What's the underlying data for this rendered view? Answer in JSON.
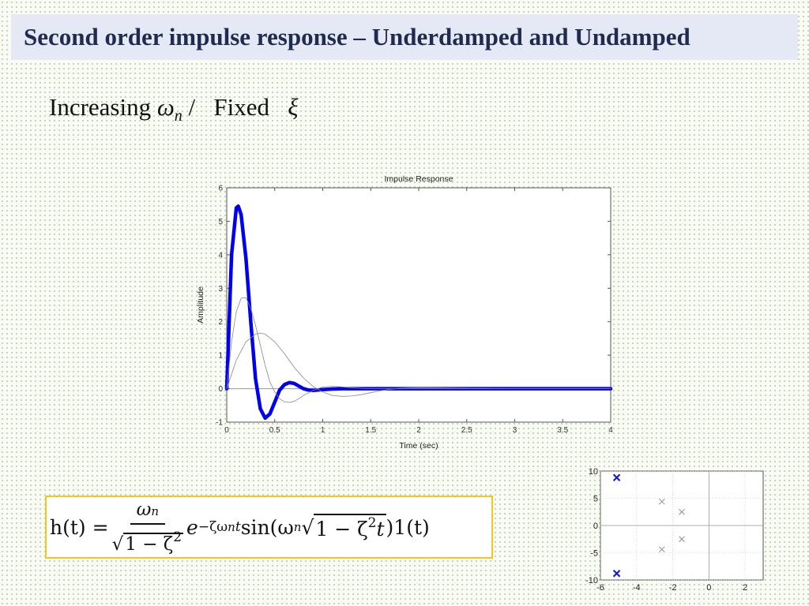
{
  "slide": {
    "title": "Second order impulse response – Underdamped and Undamped",
    "subtitle_prefix": "Increasing",
    "subtitle_omega": "ω",
    "subtitle_omega_sub": "n",
    "subtitle_sep": "/",
    "subtitle_fixed": "Fixed",
    "subtitle_xi": "ξ"
  },
  "formula": {
    "lhs": "h(t) =",
    "numerator": "ω",
    "numerator_sub": "n",
    "den_radical": "√",
    "den_body": "1 − ζ",
    "den_exp": "2",
    "e": "e",
    "exponent": "−ζω",
    "exponent_sub": "n",
    "exponent_t": "t",
    "sin": "sin(ω",
    "sin_sub": "n",
    "radical": "√",
    "radical_body": "1 − ζ",
    "radical_exp": "2",
    "radical_t": "t",
    "tail": ")1(t)"
  },
  "chart_data": [
    {
      "type": "line",
      "title": "Impulse Response",
      "xlabel": "Time (sec)",
      "ylabel": "Amplitude",
      "xlim": [
        0,
        4
      ],
      "ylim": [
        -1,
        6
      ],
      "xticks": [
        0,
        0.5,
        1,
        1.5,
        2,
        2.5,
        3,
        3.5,
        4
      ],
      "xtick_labels": [
        "0",
        "0.5",
        "1",
        "1.5",
        "2",
        "2.5",
        "3",
        "3.5",
        "4"
      ],
      "yticks": [
        -1,
        0,
        1,
        2,
        3,
        4,
        5,
        6
      ],
      "ytick_labels": [
        "-1",
        "0",
        "1",
        "2",
        "3",
        "4",
        "5",
        "6"
      ],
      "grid": false,
      "series": [
        {
          "color": "#0000ee",
          "highlight": true,
          "x": [
            0,
            0.05,
            0.1,
            0.12,
            0.15,
            0.2,
            0.25,
            0.3,
            0.35,
            0.4,
            0.45,
            0.5,
            0.55,
            0.6,
            0.65,
            0.7,
            0.75,
            0.8,
            0.85,
            0.9,
            1.0,
            1.1,
            1.2,
            1.3,
            1.5,
            2.0,
            3.0,
            4.0
          ],
          "y": [
            0,
            4.0,
            5.4,
            5.45,
            5.2,
            3.9,
            2.0,
            0.3,
            -0.6,
            -0.88,
            -0.75,
            -0.4,
            -0.05,
            0.12,
            0.18,
            0.16,
            0.08,
            0.0,
            -0.04,
            -0.05,
            -0.03,
            -0.01,
            0.0,
            0.0,
            0.0,
            0.0,
            0.0,
            0.0
          ]
        },
        {
          "color": "#888888",
          "highlight": false,
          "x": [
            0,
            0.05,
            0.1,
            0.15,
            0.2,
            0.25,
            0.3,
            0.35,
            0.4,
            0.45,
            0.5,
            0.55,
            0.6,
            0.65,
            0.7,
            0.75,
            0.8,
            0.9,
            1.0,
            1.1,
            1.2,
            1.3,
            1.4,
            1.5,
            1.7,
            2.0,
            2.5,
            3.0,
            4.0
          ],
          "y": [
            0,
            1.4,
            2.3,
            2.7,
            2.72,
            2.4,
            1.9,
            1.3,
            0.7,
            0.2,
            -0.1,
            -0.3,
            -0.39,
            -0.41,
            -0.38,
            -0.3,
            -0.2,
            -0.05,
            0.05,
            0.07,
            0.05,
            0.03,
            0.01,
            0.0,
            0.0,
            0.0,
            0.0,
            0.0,
            0.0
          ]
        },
        {
          "color": "#888888",
          "highlight": false,
          "x": [
            0,
            0.1,
            0.2,
            0.3,
            0.35,
            0.4,
            0.5,
            0.6,
            0.7,
            0.8,
            0.9,
            1.0,
            1.1,
            1.2,
            1.3,
            1.4,
            1.5,
            1.6,
            1.7,
            1.8,
            2.0,
            2.2,
            2.5,
            3.0,
            4.0
          ],
          "y": [
            0,
            0.85,
            1.4,
            1.63,
            1.66,
            1.63,
            1.4,
            1.05,
            0.65,
            0.32,
            0.06,
            -0.1,
            -0.2,
            -0.23,
            -0.22,
            -0.18,
            -0.12,
            -0.06,
            -0.02,
            0.01,
            0.03,
            0.02,
            0.01,
            0.0,
            0.0
          ]
        }
      ]
    },
    {
      "type": "scatter",
      "xlim": [
        -6,
        3
      ],
      "ylim": [
        -10,
        10
      ],
      "xticks": [
        -6,
        -4,
        -2,
        0,
        2
      ],
      "xtick_labels": [
        "-6",
        "-4",
        "-2",
        "0",
        "2"
      ],
      "yticks": [
        -10,
        -5,
        0,
        5,
        10
      ],
      "ytick_labels": [
        "-10",
        "-5",
        "0",
        "5",
        "10"
      ],
      "grid": true,
      "series": [
        {
          "color": "#1a1ad0",
          "marker": "x",
          "highlight": true,
          "x": [
            -5.1,
            -5.1
          ],
          "y": [
            8.8,
            -8.8
          ]
        },
        {
          "color": "#888888",
          "marker": "x",
          "highlight": false,
          "x": [
            -2.6,
            -1.5,
            -2.6,
            -1.5
          ],
          "y": [
            4.4,
            2.5,
            -4.4,
            -2.5
          ]
        }
      ]
    }
  ]
}
